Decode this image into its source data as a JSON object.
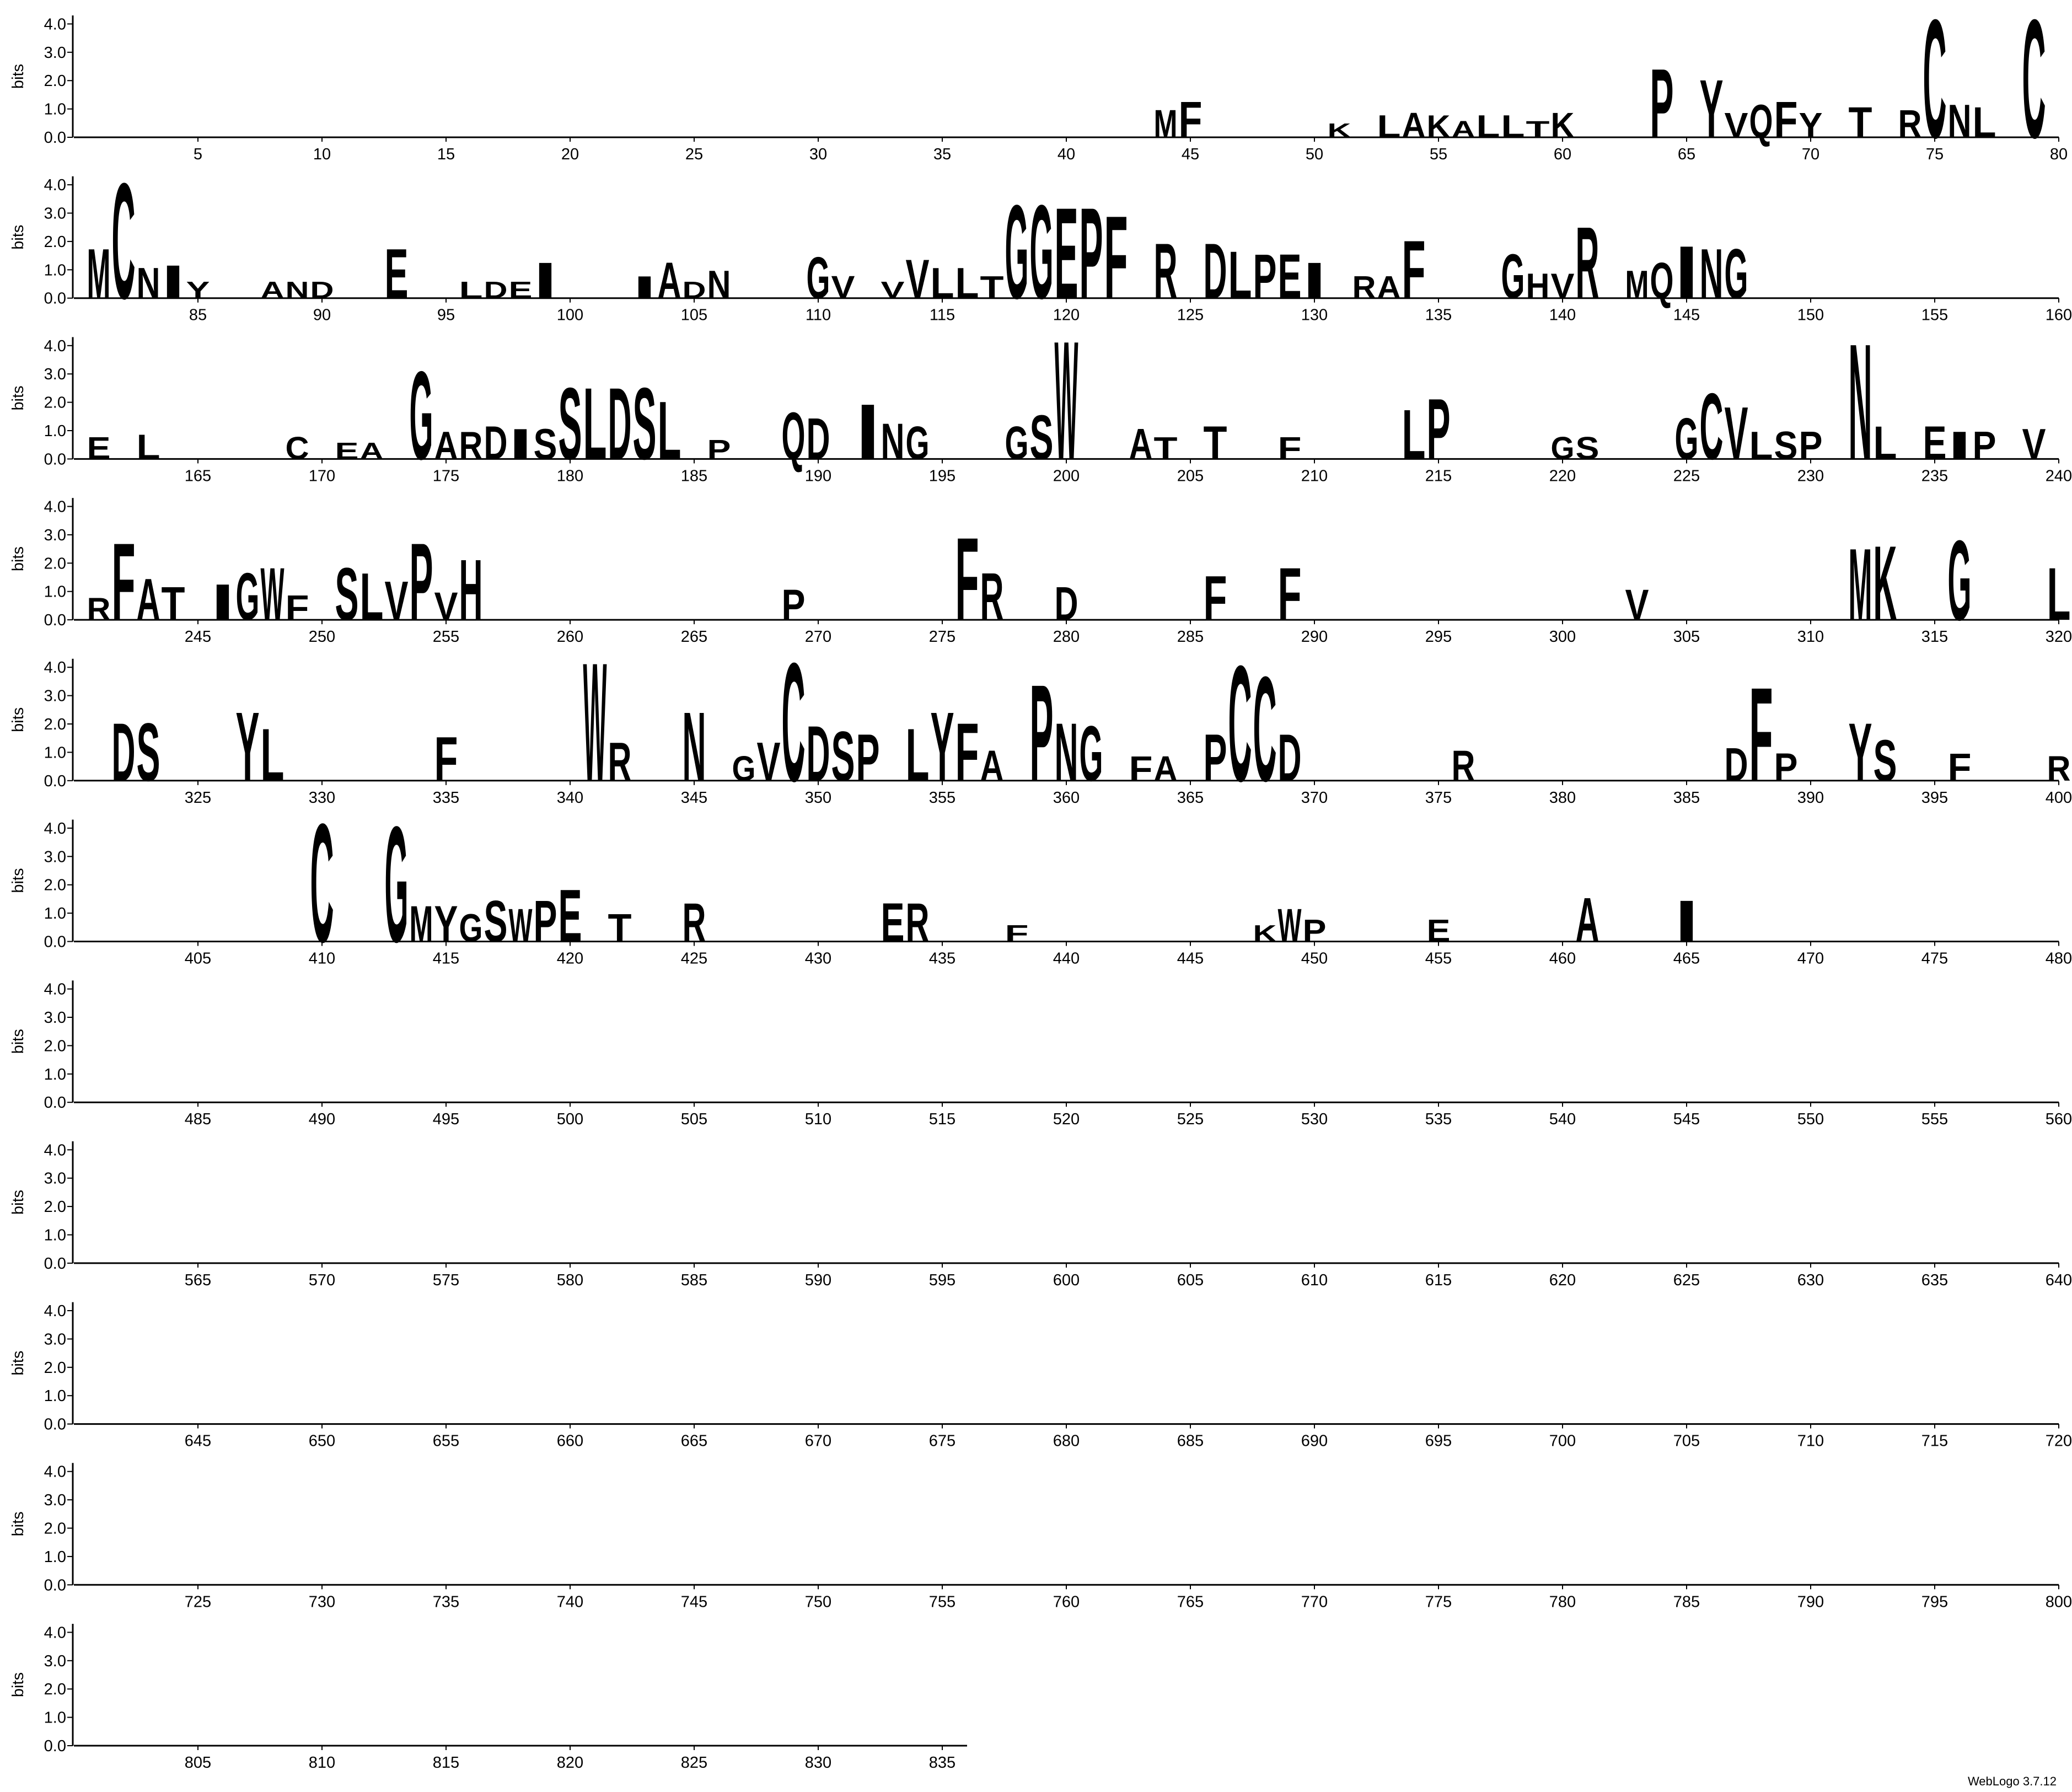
{
  "chart_data": {
    "type": "logo",
    "ylabel": "bits",
    "footer": "WebLogo 3.7.12",
    "ylim": [
      0,
      4.3
    ],
    "yticks": [
      {
        "value": 0,
        "label": "0.0"
      },
      {
        "value": 1,
        "label": "1.0"
      },
      {
        "value": 2,
        "label": "2.0"
      },
      {
        "value": 3,
        "label": "3.0"
      },
      {
        "value": 4,
        "label": "4.0"
      }
    ],
    "xlim": [
      0.5,
      836.5
    ],
    "xticks": [
      5,
      10,
      15,
      20,
      25,
      30,
      35,
      40,
      45,
      50,
      55,
      60,
      65,
      70,
      75,
      80,
      85,
      90,
      95,
      100,
      105,
      110,
      115,
      120,
      125,
      130,
      135,
      140,
      145,
      150,
      155,
      160,
      165,
      170,
      175,
      180,
      185,
      190,
      195,
      200,
      205,
      210,
      215,
      220,
      225,
      230,
      235,
      240,
      245,
      250,
      255,
      260,
      265,
      270,
      275,
      280,
      285,
      290,
      295,
      300,
      305,
      310,
      315,
      320,
      325,
      330,
      335,
      340,
      345,
      350,
      355,
      360,
      365,
      370,
      375,
      380,
      385,
      390,
      395,
      400,
      405,
      410,
      415,
      420,
      425,
      430,
      435,
      440,
      445,
      450,
      455,
      460,
      465,
      470,
      475,
      480,
      485,
      490,
      495,
      500,
      505,
      510,
      515,
      520,
      525,
      530,
      535,
      540,
      545,
      550,
      555,
      560,
      565,
      570,
      575,
      580,
      585,
      590,
      595,
      600,
      605,
      610,
      615,
      620,
      625,
      630,
      635,
      640,
      645,
      650,
      655,
      660,
      665,
      670,
      675,
      680,
      685,
      690,
      695,
      700,
      705,
      710,
      715,
      720,
      725,
      730,
      735,
      740,
      745,
      750,
      755,
      760,
      765,
      770,
      775,
      780,
      785,
      790,
      795,
      800,
      805,
      810,
      815,
      820,
      825,
      830,
      835
    ],
    "color": "#000000",
    "highlight_letter": "C",
    "highlight_color": "#ff0000",
    "x": [
      44,
      45,
      51,
      53,
      54,
      55,
      56,
      57,
      58,
      59,
      60,
      64,
      66,
      67,
      68,
      69,
      70,
      72,
      74,
      75,
      76,
      77,
      79,
      81,
      82,
      83,
      84,
      85,
      88,
      89,
      90,
      93,
      96,
      97,
      98,
      99,
      103,
      104,
      105,
      106,
      110,
      111,
      113,
      114,
      115,
      116,
      117,
      118,
      119,
      120,
      121,
      122,
      124,
      126,
      127,
      128,
      129,
      130,
      132,
      133,
      134,
      138,
      139,
      140,
      141,
      143,
      144,
      145,
      146,
      147,
      161,
      163,
      169,
      171,
      172,
      174,
      175,
      176,
      177,
      178,
      179,
      180,
      181,
      182,
      183,
      184,
      186,
      189,
      190,
      192,
      193,
      194,
      198,
      199,
      200,
      203,
      204,
      206,
      209,
      214,
      215,
      220,
      221,
      225,
      226,
      227,
      228,
      229,
      230,
      232,
      233,
      235,
      236,
      237,
      239,
      241,
      242,
      243,
      244,
      246,
      247,
      248,
      249,
      251,
      252,
      253,
      254,
      255,
      256,
      269,
      276,
      277,
      280,
      286,
      289,
      303,
      312,
      313,
      316,
      320,
      322,
      323,
      327,
      328,
      335,
      341,
      342,
      345,
      347,
      348,
      349,
      350,
      351,
      352,
      354,
      355,
      356,
      357,
      359,
      360,
      361,
      363,
      364,
      366,
      367,
      368,
      369,
      376,
      387,
      388,
      389,
      392,
      393,
      396,
      400,
      410,
      413,
      414,
      415,
      416,
      417,
      418,
      419,
      420,
      422,
      425,
      433,
      434,
      438,
      448,
      449,
      450,
      455,
      461,
      465
    ],
    "letters": [
      "M",
      "F",
      "K",
      "L",
      "A",
      "K",
      "A",
      "L",
      "L",
      "T",
      "K",
      "P",
      "Y",
      "V",
      "Q",
      "F",
      "Y",
      "T",
      "R",
      "C",
      "N",
      "L",
      "C",
      "M",
      "C",
      "N",
      "I",
      "Y",
      "A",
      "N",
      "D",
      "E",
      "L",
      "D",
      "E",
      "I",
      "I",
      "A",
      "D",
      "N",
      "G",
      "V",
      "V",
      "V",
      "L",
      "L",
      "T",
      "G",
      "G",
      "E",
      "P",
      "F",
      "R",
      "D",
      "L",
      "P",
      "E",
      "I",
      "R",
      "A",
      "F",
      "G",
      "H",
      "V",
      "R",
      "M",
      "Q",
      "I",
      "N",
      "G",
      "E",
      "L",
      "C",
      "E",
      "A",
      "G",
      "A",
      "R",
      "D",
      "I",
      "S",
      "S",
      "L",
      "D",
      "S",
      "L",
      "P",
      "Q",
      "D",
      "I",
      "N",
      "G",
      "G",
      "S",
      "W",
      "A",
      "T",
      "T",
      "F",
      "L",
      "P",
      "G",
      "S",
      "G",
      "C",
      "V",
      "L",
      "S",
      "P",
      "N",
      "L",
      "E",
      "I",
      "P",
      "V",
      "R",
      "F",
      "A",
      "T",
      "I",
      "G",
      "W",
      "F",
      "S",
      "L",
      "V",
      "P",
      "V",
      "H",
      "P",
      "F",
      "R",
      "D",
      "F",
      "F",
      "V",
      "M",
      "K",
      "G",
      "L",
      "D",
      "S",
      "Y",
      "L",
      "F",
      "W",
      "R",
      "N",
      "G",
      "V",
      "C",
      "D",
      "S",
      "P",
      "L",
      "Y",
      "F",
      "A",
      "P",
      "N",
      "G",
      "F",
      "A",
      "P",
      "C",
      "C",
      "D",
      "R",
      "D",
      "F",
      "P",
      "Y",
      "S",
      "F",
      "R",
      "C",
      "G",
      "M",
      "Y",
      "G",
      "S",
      "W",
      "P",
      "E",
      "T",
      "R",
      "E",
      "R",
      "F",
      "K",
      "W",
      "P",
      "E",
      "A",
      "I"
    ],
    "values": [
      1.0,
      1.3,
      0.5,
      0.8,
      0.9,
      0.8,
      0.6,
      0.8,
      0.8,
      0.6,
      0.9,
      2.5,
      2.1,
      0.9,
      1.2,
      1.3,
      0.9,
      1.1,
      1.0,
      4.3,
      1.2,
      1.1,
      4.3,
      1.8,
      4.2,
      1.1,
      1.2,
      0.6,
      0.6,
      0.6,
      0.6,
      1.8,
      0.6,
      0.6,
      0.6,
      1.3,
      0.8,
      1.3,
      0.6,
      1.0,
      1.5,
      0.8,
      0.6,
      1.4,
      1.1,
      1.1,
      0.8,
      3.4,
      3.4,
      3.3,
      3.3,
      3.0,
      2.0,
      2.0,
      1.7,
      1.6,
      1.6,
      1.3,
      0.8,
      0.8,
      2.1,
      1.6,
      0.9,
      0.9,
      2.6,
      1.0,
      1.3,
      1.9,
      1.8,
      1.8,
      0.8,
      0.9,
      0.8,
      0.6,
      0.6,
      3.2,
      1.0,
      1.0,
      1.2,
      1.1,
      1.1,
      2.6,
      2.6,
      2.6,
      2.6,
      2.1,
      0.7,
      1.7,
      1.5,
      2.0,
      1.3,
      1.2,
      1.2,
      1.6,
      4.3,
      1.1,
      0.8,
      1.2,
      0.8,
      1.8,
      2.2,
      0.8,
      0.8,
      1.5,
      2.4,
      1.9,
      1.0,
      1.0,
      1.0,
      4.2,
      1.2,
      1.2,
      1.0,
      1.0,
      1.1,
      0.8,
      2.8,
      1.5,
      1.2,
      1.3,
      1.7,
      1.9,
      0.9,
      1.9,
      1.7,
      1.4,
      2.8,
      1.0,
      2.2,
      1.1,
      3.0,
      1.7,
      1.2,
      1.6,
      1.9,
      1.1,
      2.6,
      2.7,
      2.9,
      1.9,
      2.1,
      2.1,
      2.5,
      1.9,
      1.6,
      4.3,
      1.4,
      2.5,
      0.9,
      1.4,
      4.3,
      2.0,
      1.8,
      1.7,
      1.9,
      2.5,
      2.1,
      1.1,
      3.5,
      2.1,
      2.0,
      0.9,
      0.9,
      1.7,
      4.2,
      3.8,
      1.7,
      1.1,
      1.2,
      3.4,
      1.0,
      2.1,
      1.5,
      1.0,
      0.9,
      4.3,
      4.2,
      1.3,
      1.3,
      1.0,
      1.5,
      1.2,
      1.5,
      1.9,
      1.0,
      1.4,
      1.4,
      1.4,
      0.6,
      0.6,
      1.2,
      0.8,
      0.8,
      1.6,
      1.5
    ]
  }
}
